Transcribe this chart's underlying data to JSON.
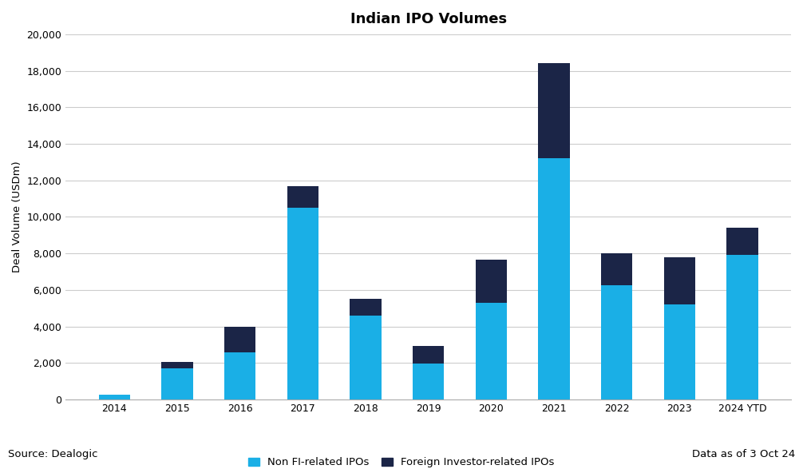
{
  "title": "Indian IPO Volumes",
  "ylabel": "Deal Volume (USDm)",
  "source": "Source: Dealogic",
  "note": "Data as of 3 Oct 24",
  "categories": [
    "2014",
    "2015",
    "2016",
    "2017",
    "2018",
    "2019",
    "2020",
    "2021",
    "2022",
    "2023",
    "2024 YTD"
  ],
  "non_fi": [
    250,
    1700,
    2600,
    10500,
    4600,
    1950,
    5300,
    13200,
    6250,
    5200,
    7900
  ],
  "foreign_inv": [
    0,
    350,
    1400,
    1200,
    900,
    1000,
    2350,
    5200,
    1750,
    2600,
    1500
  ],
  "non_fi_color": "#1AAFE6",
  "foreign_inv_color": "#1B2547",
  "background_color": "#FFFFFF",
  "grid_color": "#CCCCCC",
  "ylim": [
    0,
    20000
  ],
  "yticks": [
    0,
    2000,
    4000,
    6000,
    8000,
    10000,
    12000,
    14000,
    16000,
    18000,
    20000
  ],
  "legend_non_fi": "Non FI-related IPOs",
  "legend_foreign_inv": "Foreign Investor-related IPOs",
  "title_fontsize": 13,
  "axis_fontsize": 9.5,
  "tick_fontsize": 9
}
